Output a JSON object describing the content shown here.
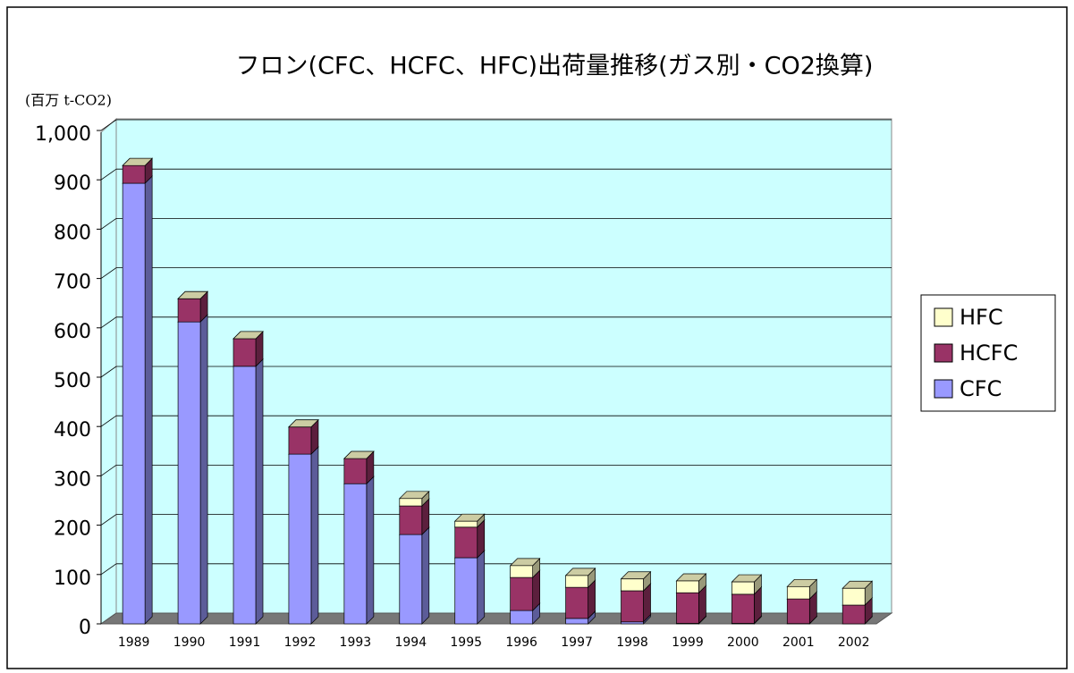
{
  "chart_data": {
    "type": "bar3d_stacked",
    "title": "フロン(CFC、HCFC、HFC)出荷量推移(ガス別・CO2換算)",
    "y_label": "(百万 t-CO2)",
    "categories": [
      "1989",
      "1990",
      "1991",
      "1992",
      "1993",
      "1994",
      "1995",
      "1996",
      "1997",
      "1998",
      "1999",
      "2000",
      "2001",
      "2002"
    ],
    "series": [
      {
        "name": "CFC",
        "color": "#9999ff",
        "values": [
          893,
          612,
          522,
          344,
          284,
          181,
          134,
          27,
          11,
          4,
          1,
          1,
          0.5,
          0
        ]
      },
      {
        "name": "HCFC",
        "color": "#993366",
        "values": [
          36,
          47,
          56,
          55,
          51,
          58,
          62,
          67,
          63,
          63,
          62,
          59,
          50,
          38
        ]
      },
      {
        "name": "HFC",
        "color": "#ffffcc",
        "values": [
          0,
          0,
          0,
          0,
          0,
          15,
          12,
          24,
          24,
          24,
          24,
          25,
          25,
          34
        ]
      }
    ],
    "ylim": [
      0,
      1000
    ],
    "yticks": [
      0,
      100,
      200,
      300,
      400,
      500,
      600,
      700,
      800,
      900,
      {
        "value": 1000,
        "label": "1,000"
      }
    ],
    "grid": true,
    "legend": "right"
  }
}
